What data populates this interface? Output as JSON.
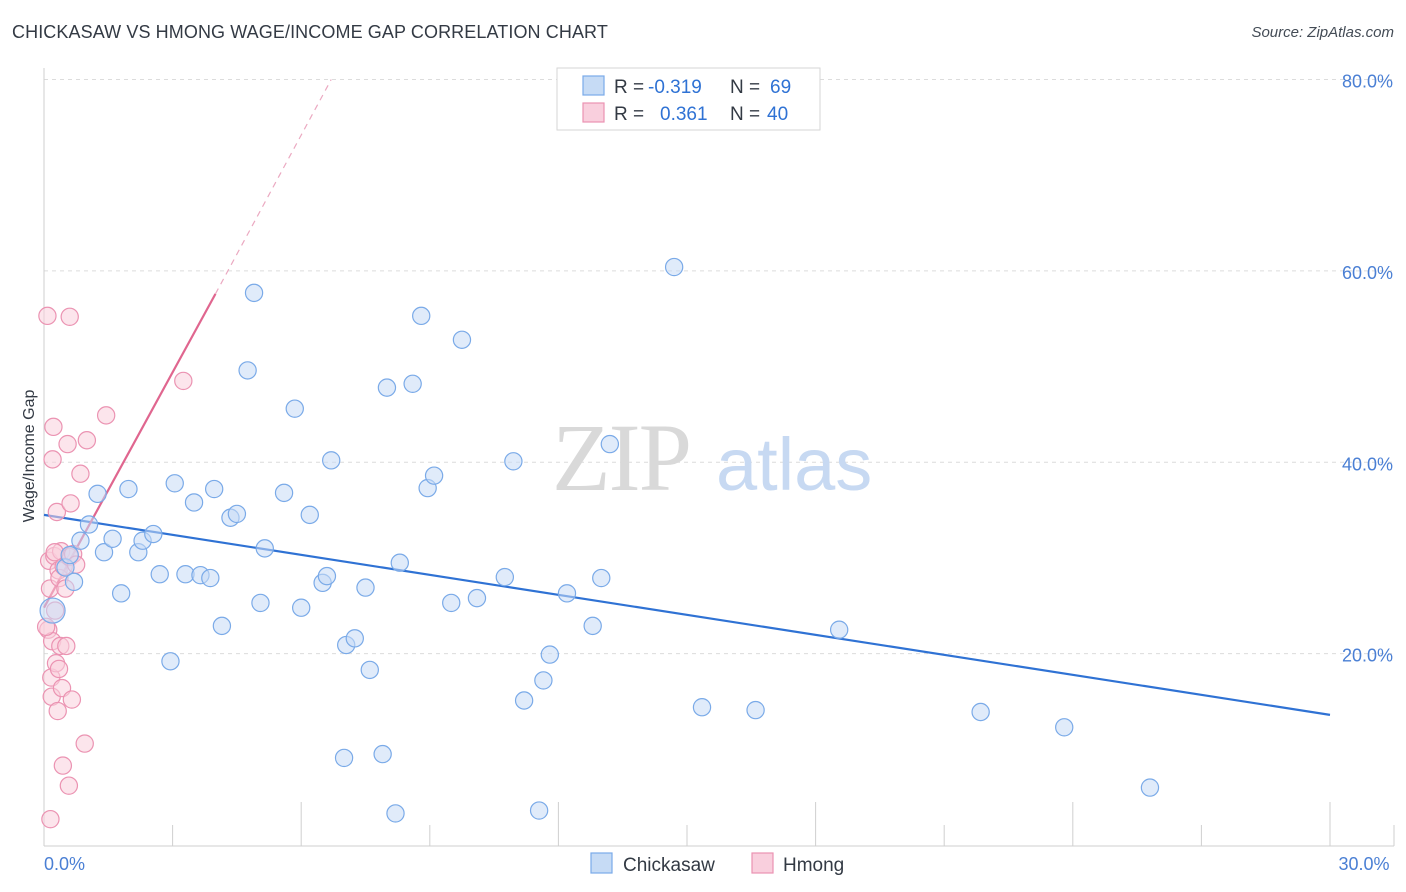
{
  "title": "CHICKASAW VS HMONG WAGE/INCOME GAP CORRELATION CHART",
  "source": "Source: ZipAtlas.com",
  "watermark": {
    "zip": "ZIP",
    "atlas": "atlas"
  },
  "chart_data": {
    "type": "scatter",
    "title": "CHICKASAW VS HMONG WAGE/INCOME GAP CORRELATION CHART",
    "xlabel": "",
    "ylabel": "Wage/Income Gap",
    "xlim": [
      0,
      30
    ],
    "ylim": [
      0,
      80
    ],
    "x_tick_labels": [
      {
        "value": 0,
        "label": "0.0%"
      },
      {
        "value": 30,
        "label": "30.0%"
      }
    ],
    "y_tick_labels": [
      {
        "value": 20,
        "label": "20.0%"
      },
      {
        "value": 40,
        "label": "40.0%"
      },
      {
        "value": 60,
        "label": "60.0%"
      },
      {
        "value": 80,
        "label": "80.0%"
      }
    ],
    "legend_stats": [
      {
        "name": "Chickasaw",
        "r_label": "R =",
        "r": "-0.319",
        "n_label": "N =",
        "n": "69"
      },
      {
        "name": "Hmong",
        "r_label": "R =",
        "r": "0.361",
        "n_label": "N =",
        "n": "40"
      }
    ],
    "series": [
      {
        "name": "Chickasaw",
        "color": "#7aaae8",
        "fill": "#c6dbf5",
        "line_color": "#2f72d4",
        "trend": {
          "x0": 0,
          "y0": 34.5,
          "x1": 30,
          "y1": 13.6
        },
        "points": [
          [
            0.2,
            24.5,
            "big"
          ],
          [
            0.5,
            29
          ],
          [
            0.6,
            30.3
          ],
          [
            0.7,
            27.5
          ],
          [
            0.85,
            31.8
          ],
          [
            1.05,
            33.5
          ],
          [
            1.25,
            36.7
          ],
          [
            1.4,
            30.6
          ],
          [
            1.6,
            32
          ],
          [
            1.8,
            26.3
          ],
          [
            1.97,
            37.2
          ],
          [
            2.2,
            30.6
          ],
          [
            2.3,
            31.8
          ],
          [
            2.55,
            32.5
          ],
          [
            2.7,
            28.3
          ],
          [
            2.95,
            19.2
          ],
          [
            3.05,
            37.8
          ],
          [
            3.3,
            28.3
          ],
          [
            3.5,
            35.8
          ],
          [
            3.65,
            28.2
          ],
          [
            3.88,
            27.9
          ],
          [
            3.97,
            37.2
          ],
          [
            4.15,
            22.9
          ],
          [
            4.35,
            34.2
          ],
          [
            4.5,
            34.6
          ],
          [
            4.75,
            49.6
          ],
          [
            4.9,
            57.7
          ],
          [
            5.05,
            25.3
          ],
          [
            5.15,
            31
          ],
          [
            5.6,
            36.8
          ],
          [
            5.85,
            45.6
          ],
          [
            6.0,
            24.8
          ],
          [
            6.2,
            34.5
          ],
          [
            6.5,
            27.4
          ],
          [
            6.6,
            28.1
          ],
          [
            6.7,
            40.2
          ],
          [
            7.0,
            9.1
          ],
          [
            7.05,
            20.9
          ],
          [
            7.25,
            21.6
          ],
          [
            7.5,
            26.9
          ],
          [
            7.6,
            18.3
          ],
          [
            7.9,
            9.5
          ],
          [
            8.0,
            47.8
          ],
          [
            8.2,
            3.3
          ],
          [
            8.3,
            29.5
          ],
          [
            8.6,
            48.2
          ],
          [
            8.8,
            55.3
          ],
          [
            8.95,
            37.3
          ],
          [
            9.1,
            38.6
          ],
          [
            9.5,
            25.3
          ],
          [
            9.75,
            52.8
          ],
          [
            10.1,
            25.8
          ],
          [
            10.75,
            28
          ],
          [
            10.95,
            40.1
          ],
          [
            11.2,
            15.1
          ],
          [
            11.55,
            3.6
          ],
          [
            11.65,
            17.2
          ],
          [
            11.8,
            19.9
          ],
          [
            12.2,
            26.3
          ],
          [
            12.8,
            22.9
          ],
          [
            13.0,
            27.9
          ],
          [
            13.2,
            41.9
          ],
          [
            14.7,
            60.4
          ],
          [
            15.35,
            14.4
          ],
          [
            16.6,
            14.1
          ],
          [
            18.55,
            22.5
          ],
          [
            21.85,
            13.9
          ],
          [
            23.8,
            12.3
          ],
          [
            25.8,
            6.0
          ]
        ]
      },
      {
        "name": "Hmong",
        "color": "#eb93b2",
        "fill": "#f9cfdd",
        "line_color": "#e0668f",
        "trend": {
          "x0": 0,
          "y0": 24.8,
          "x1": 4.0,
          "y1": 57.6
        },
        "trend_extension": {
          "x0": 4.0,
          "y0": 57.6,
          "x1": 6.7,
          "y1": 80
        },
        "points": [
          [
            0.08,
            55.3
          ],
          [
            0.1,
            22.5
          ],
          [
            0.12,
            29.7
          ],
          [
            0.14,
            26.8
          ],
          [
            0.15,
            2.7
          ],
          [
            0.17,
            17.5
          ],
          [
            0.18,
            15.5
          ],
          [
            0.19,
            21.3
          ],
          [
            0.2,
            40.3
          ],
          [
            0.22,
            43.7
          ],
          [
            0.24,
            30.2
          ],
          [
            0.26,
            24.5
          ],
          [
            0.28,
            19
          ],
          [
            0.3,
            34.8
          ],
          [
            0.32,
            14
          ],
          [
            0.34,
            28.7
          ],
          [
            0.36,
            27.9
          ],
          [
            0.38,
            20.8
          ],
          [
            0.4,
            30.7
          ],
          [
            0.42,
            16.4
          ],
          [
            0.44,
            8.3
          ],
          [
            0.46,
            29.1
          ],
          [
            0.5,
            26.8
          ],
          [
            0.52,
            20.8
          ],
          [
            0.55,
            41.9
          ],
          [
            0.58,
            6.2
          ],
          [
            0.6,
            30.1
          ],
          [
            0.62,
            35.7
          ],
          [
            0.65,
            15.2
          ],
          [
            0.6,
            55.2
          ],
          [
            0.68,
            30.4
          ],
          [
            0.75,
            29.3
          ],
          [
            0.85,
            38.8
          ],
          [
            0.95,
            10.6
          ],
          [
            1.0,
            42.3
          ],
          [
            1.45,
            44.9
          ],
          [
            3.25,
            48.5
          ],
          [
            0.05,
            22.8
          ],
          [
            0.25,
            30.6
          ],
          [
            0.35,
            18.4
          ]
        ]
      }
    ]
  }
}
